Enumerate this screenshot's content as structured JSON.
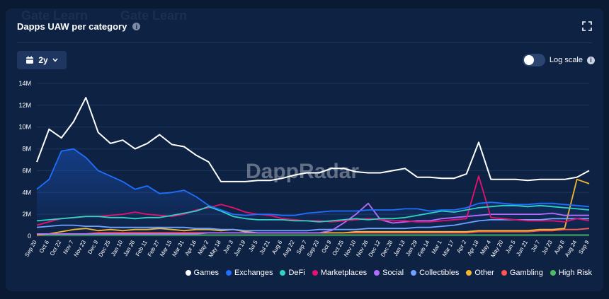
{
  "card": {
    "title": "Dapps UAW per category",
    "range_label": "2y",
    "log_scale_label": "Log scale",
    "watermark_logo": "DappRadar",
    "watermark_text": "Gate Learn"
  },
  "chart_data": {
    "type": "line",
    "title": "Dapps UAW per category",
    "ylim": [
      0,
      14000000
    ],
    "y_ticks": [
      {
        "v": 0,
        "label": "0"
      },
      {
        "v": 2000000,
        "label": "2M"
      },
      {
        "v": 4000000,
        "label": "4M"
      },
      {
        "v": 6000000,
        "label": "6M"
      },
      {
        "v": 8000000,
        "label": "8M"
      },
      {
        "v": 10000000,
        "label": "10M"
      },
      {
        "v": 12000000,
        "label": "12M"
      },
      {
        "v": 14000000,
        "label": "14M"
      }
    ],
    "x_labels": [
      "Sep 20",
      "Oct 6",
      "Oct 22",
      "Nov 7",
      "Nov 23",
      "Dec 9",
      "Dec 25",
      "Jan 10",
      "Jan 26",
      "Feb 11",
      "Feb 27",
      "Mar 15",
      "Mar 31",
      "Apr 16",
      "May 2",
      "May 18",
      "Jun 3",
      "Jun 19",
      "Jul 5",
      "Jul 21",
      "Aug 6",
      "Aug 22",
      "Sep 7",
      "Sep 23",
      "Oct 9",
      "Oct 25",
      "Nov 10",
      "Nov 26",
      "Dec 12",
      "Dec 28",
      "Jan 13",
      "Jan 29",
      "Feb 14",
      "Mar 1",
      "Mar 17",
      "Apr 2",
      "Apr 18",
      "May 4",
      "May 20",
      "Jun 5",
      "Jun 21",
      "Jul 7",
      "Jul 23",
      "Aug 8",
      "Aug 24",
      "Sep 9"
    ],
    "grid": true,
    "legend_position": "bottom-right",
    "series": [
      {
        "name": "Games",
        "color": "#ffffff",
        "values": [
          6.8,
          9.8,
          9.0,
          10.5,
          12.7,
          9.5,
          8.5,
          8.8,
          8.0,
          8.5,
          9.3,
          8.4,
          8.2,
          7.4,
          6.8,
          5.0,
          5.0,
          5.0,
          5.1,
          5.1,
          5.3,
          5.6,
          5.8,
          5.8,
          6.2,
          6.2,
          5.9,
          5.8,
          5.8,
          6.0,
          6.2,
          5.4,
          5.4,
          5.3,
          5.3,
          5.7,
          8.6,
          5.2,
          5.2,
          5.2,
          5.1,
          5.2,
          5.2,
          5.2,
          5.4,
          6.0
        ]
      },
      {
        "name": "Exchanges",
        "color": "#1f6fff",
        "values": [
          4.3,
          5.2,
          7.8,
          8.0,
          7.2,
          6.0,
          5.5,
          5.0,
          4.3,
          4.6,
          3.9,
          4.0,
          4.2,
          3.6,
          2.8,
          2.4,
          2.0,
          1.9,
          2.0,
          2.0,
          1.9,
          1.9,
          2.1,
          2.2,
          2.3,
          2.3,
          2.3,
          2.4,
          2.4,
          2.4,
          2.5,
          2.5,
          2.3,
          2.4,
          2.4,
          2.6,
          3.0,
          3.1,
          3.0,
          2.9,
          2.9,
          3.0,
          3.0,
          2.9,
          2.8,
          2.7
        ]
      },
      {
        "name": "DeFi",
        "color": "#2fd3c2",
        "values": [
          1.4,
          1.5,
          1.6,
          1.7,
          1.8,
          1.8,
          1.7,
          1.7,
          1.6,
          1.7,
          1.7,
          1.9,
          2.1,
          2.3,
          2.7,
          2.3,
          1.8,
          1.6,
          1.5,
          1.5,
          1.5,
          1.4,
          1.4,
          1.3,
          1.4,
          1.5,
          1.6,
          1.5,
          1.6,
          1.6,
          1.7,
          1.9,
          2.1,
          2.3,
          2.2,
          2.4,
          2.6,
          2.7,
          2.8,
          2.8,
          2.7,
          2.8,
          2.7,
          2.6,
          2.5,
          2.4
        ]
      },
      {
        "name": "Marketplaces",
        "color": "#e8106e",
        "values": [
          1.0,
          1.3,
          1.6,
          1.7,
          1.8,
          1.8,
          1.9,
          2.0,
          2.2,
          2.0,
          1.9,
          1.8,
          2.0,
          2.4,
          2.6,
          2.9,
          2.6,
          2.2,
          2.0,
          1.9,
          1.6,
          1.5,
          1.4,
          1.4,
          1.3,
          1.4,
          1.5,
          1.6,
          1.5,
          1.4,
          1.4,
          1.3,
          1.3,
          1.4,
          1.5,
          1.6,
          5.5,
          1.7,
          1.6,
          1.5,
          1.4,
          1.4,
          1.4,
          1.3,
          1.6,
          1.4
        ]
      },
      {
        "name": "Social",
        "color": "#b36cff",
        "values": [
          0.2,
          0.2,
          0.2,
          0.2,
          0.2,
          0.2,
          0.2,
          0.2,
          0.2,
          0.2,
          0.2,
          0.2,
          0.2,
          0.2,
          0.3,
          0.3,
          0.3,
          0.3,
          0.3,
          0.3,
          0.3,
          0.3,
          0.3,
          0.3,
          0.5,
          1.2,
          2.0,
          3.0,
          1.5,
          1.2,
          1.3,
          1.4,
          1.4,
          1.6,
          1.7,
          1.8,
          1.9,
          2.0,
          2.0,
          2.0,
          2.0,
          2.0,
          2.1,
          1.9,
          1.9,
          1.9
        ]
      },
      {
        "name": "Collectibles",
        "color": "#6ea3ff",
        "values": [
          0.8,
          0.9,
          1.0,
          1.0,
          0.9,
          0.9,
          0.8,
          0.8,
          0.8,
          0.8,
          0.8,
          0.8,
          0.8,
          0.7,
          0.7,
          0.6,
          0.6,
          0.5,
          0.5,
          0.5,
          0.5,
          0.5,
          0.5,
          0.6,
          0.6,
          0.6,
          0.6,
          0.7,
          0.7,
          0.7,
          0.7,
          0.8,
          0.8,
          0.9,
          1.0,
          1.2,
          1.4,
          1.5,
          1.5,
          1.5,
          1.5,
          1.5,
          1.6,
          1.6,
          1.6,
          1.6
        ]
      },
      {
        "name": "Other",
        "color": "#f2b632",
        "values": [
          0.1,
          0.2,
          0.4,
          0.6,
          0.7,
          0.5,
          0.6,
          0.5,
          0.6,
          0.6,
          0.7,
          0.6,
          0.5,
          0.6,
          0.6,
          0.5,
          0.6,
          0.4,
          0.3,
          0.3,
          0.3,
          0.3,
          0.3,
          0.3,
          0.3,
          0.3,
          0.4,
          0.4,
          0.4,
          0.4,
          0.4,
          0.4,
          0.4,
          0.4,
          0.4,
          0.4,
          0.5,
          0.5,
          0.5,
          0.5,
          0.5,
          0.6,
          0.6,
          0.7,
          5.2,
          4.8
        ]
      },
      {
        "name": "Gambling",
        "color": "#ff5555",
        "values": [
          0.2,
          0.2,
          0.2,
          0.2,
          0.2,
          0.3,
          0.3,
          0.3,
          0.3,
          0.3,
          0.3,
          0.3,
          0.3,
          0.3,
          0.3,
          0.3,
          0.3,
          0.3,
          0.3,
          0.3,
          0.3,
          0.3,
          0.3,
          0.3,
          0.3,
          0.3,
          0.3,
          0.3,
          0.3,
          0.3,
          0.3,
          0.3,
          0.3,
          0.3,
          0.3,
          0.3,
          0.4,
          0.4,
          0.4,
          0.4,
          0.4,
          0.5,
          0.5,
          0.6,
          0.6,
          0.7
        ]
      },
      {
        "name": "High Risk",
        "color": "#4cbf62",
        "values": [
          0.1,
          0.1,
          0.1,
          0.1,
          0.1,
          0.1,
          0.1,
          0.1,
          0.1,
          0.1,
          0.1,
          0.1,
          0.1,
          0.1,
          0.1,
          0.1,
          0.1,
          0.1,
          0.1,
          0.1,
          0.1,
          0.1,
          0.1,
          0.1,
          0.1,
          0.1,
          0.1,
          0.1,
          0.1,
          0.1,
          0.1,
          0.1,
          0.1,
          0.1,
          0.1,
          0.1,
          0.1,
          0.1,
          0.1,
          0.1,
          0.1,
          0.1,
          0.1,
          0.1,
          0.1,
          0.1
        ]
      }
    ]
  }
}
